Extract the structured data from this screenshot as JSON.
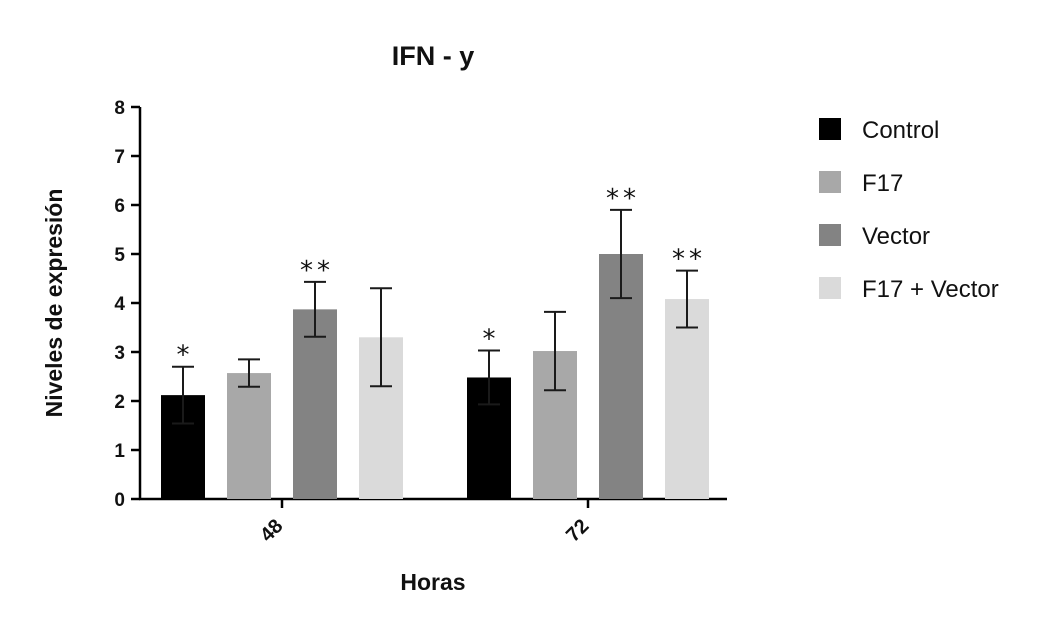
{
  "chart_data": {
    "type": "bar",
    "title": "IFN - y",
    "xlabel": "Horas",
    "ylabel": "Niveles de expresión",
    "ylim": [
      0,
      8
    ],
    "yticks": [
      0,
      1,
      2,
      3,
      4,
      5,
      6,
      7,
      8
    ],
    "categories": [
      "48",
      "72"
    ],
    "series": [
      {
        "name": "Control",
        "color": "#000000",
        "values": [
          2.12,
          2.48
        ],
        "errors": [
          0.58,
          0.55
        ],
        "significance": [
          "*",
          "*"
        ]
      },
      {
        "name": "F17",
        "color": "#a8a8a8",
        "values": [
          2.57,
          3.02
        ],
        "errors": [
          0.28,
          0.8
        ],
        "significance": [
          "",
          ""
        ]
      },
      {
        "name": "Vector",
        "color": "#838383",
        "values": [
          3.87,
          5.0
        ],
        "errors": [
          0.56,
          0.9
        ],
        "significance": [
          "**",
          "**"
        ]
      },
      {
        "name": "F17 + Vector",
        "color": "#dadada",
        "values": [
          3.3,
          4.08
        ],
        "errors": [
          1.0,
          0.58
        ],
        "significance": [
          "",
          "**"
        ]
      }
    ],
    "grid": false,
    "legend_position": "right"
  }
}
